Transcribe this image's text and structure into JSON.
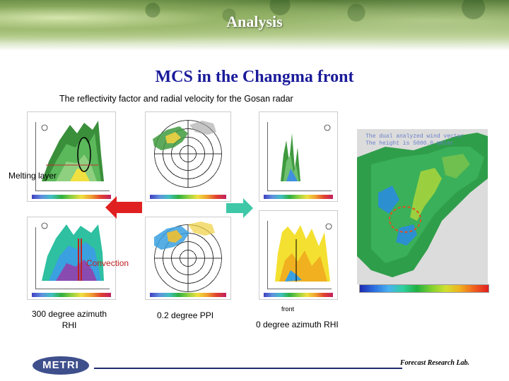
{
  "header": {
    "title": "Analysis"
  },
  "slide": {
    "title": "MCS in the Changma front",
    "subtitle": "The reflectivity factor and radial velocity  for the Gosan radar"
  },
  "annotations": {
    "melting_layer": "Melting layer",
    "convection": "Convection",
    "front": "front"
  },
  "captions": {
    "rhi_300": "300 degree azimuth\nRHI",
    "ppi": "0.2 degree PPI",
    "rhi_0": "0 degree azimuth RHI"
  },
  "wind_map": {
    "line1": "The dual analyzed wind vector",
    "line2": "The height is    5000.0 meter"
  },
  "colors": {
    "slide_title": "#1a1a9a",
    "left_arrow": "#e02020",
    "right_arrow": "#3fc8a8",
    "circle_marker": "#e05020",
    "logo_bg": "#3e4f8c"
  },
  "logo": {
    "text": "METRI"
  },
  "footer": {
    "text": "Forecast Research Lab."
  }
}
